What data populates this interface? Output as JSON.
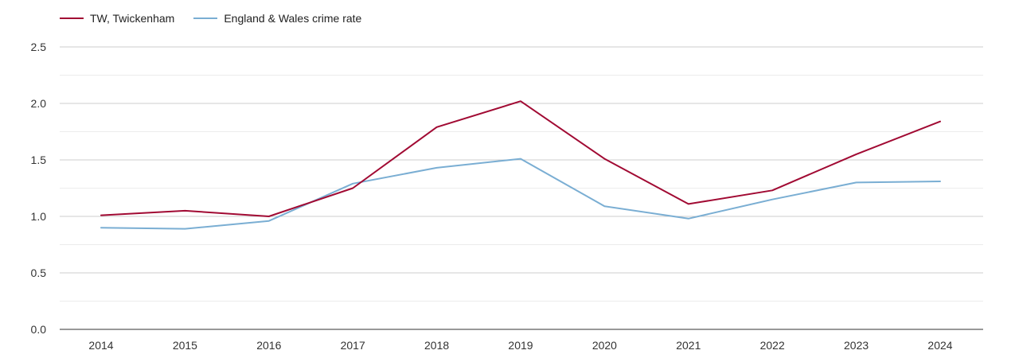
{
  "chart_data": {
    "type": "line",
    "title": "",
    "xlabel": "",
    "ylabel": "",
    "x": [
      "2014",
      "2015",
      "2016",
      "2017",
      "2018",
      "2019",
      "2020",
      "2021",
      "2022",
      "2023",
      "2024"
    ],
    "y_ticks": [
      "0.0",
      "0.5",
      "1.0",
      "1.5",
      "2.0",
      "2.5"
    ],
    "ylim": [
      0,
      2.5
    ],
    "grid": true,
    "legend_position": "top-left",
    "series": [
      {
        "name": "TW, Twickenham",
        "color": "#a10a33",
        "values": [
          1.01,
          1.05,
          1.0,
          1.25,
          1.79,
          2.02,
          1.51,
          1.11,
          1.23,
          1.55,
          1.84
        ]
      },
      {
        "name": "England & Wales crime rate",
        "color": "#7aaed3",
        "values": [
          0.9,
          0.89,
          0.96,
          1.29,
          1.43,
          1.51,
          1.09,
          0.98,
          1.15,
          1.3,
          1.31
        ]
      }
    ]
  }
}
